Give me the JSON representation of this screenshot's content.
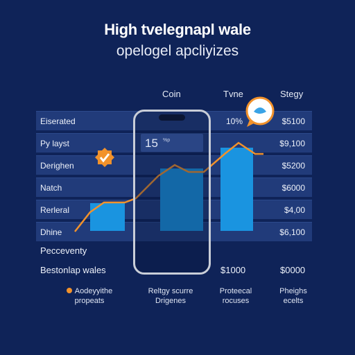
{
  "header": {
    "title": "High tvelegnapl wale",
    "subtitle": "opelogel apcliyizes"
  },
  "columns": [
    "Coin",
    "Tvne",
    "Stegy"
  ],
  "rows": [
    {
      "label": "Eiserated",
      "mid": "10%",
      "value": "$5100"
    },
    {
      "label": "Py layst",
      "mid": "",
      "value": "$9,100"
    },
    {
      "label": "Derighen",
      "mid": "",
      "value": "$5200"
    },
    {
      "label": "Natch",
      "mid": "",
      "value": "$6000"
    },
    {
      "label": "Rerleral",
      "mid": "",
      "value": "$4,00"
    },
    {
      "label": "Dhine",
      "mid": "",
      "value": "$6,100"
    }
  ],
  "phone": {
    "big_number": "15",
    "small_text": "%p"
  },
  "sections": {
    "perceventy": "Pecceventy",
    "besto": "Bestonlap wales",
    "besto_value_1": "$1000",
    "besto_value_2": "$0000"
  },
  "footer": [
    {
      "line1": "Aodeyyithe",
      "line2": "propeats"
    },
    {
      "line1": "Reltgy scurre",
      "line2": "Drigenes"
    },
    {
      "line1": "Proteecal",
      "line2": "rocuses"
    },
    {
      "line1": "Pheighs",
      "line2": "ecelts"
    }
  ],
  "colors": {
    "background": "#0f2358",
    "row": "#213b7a",
    "bar": "#1a94e0",
    "line": "#f2922b"
  },
  "icons": [
    "check-badge-icon",
    "speech-bubble-icon",
    "phone-icon"
  ]
}
